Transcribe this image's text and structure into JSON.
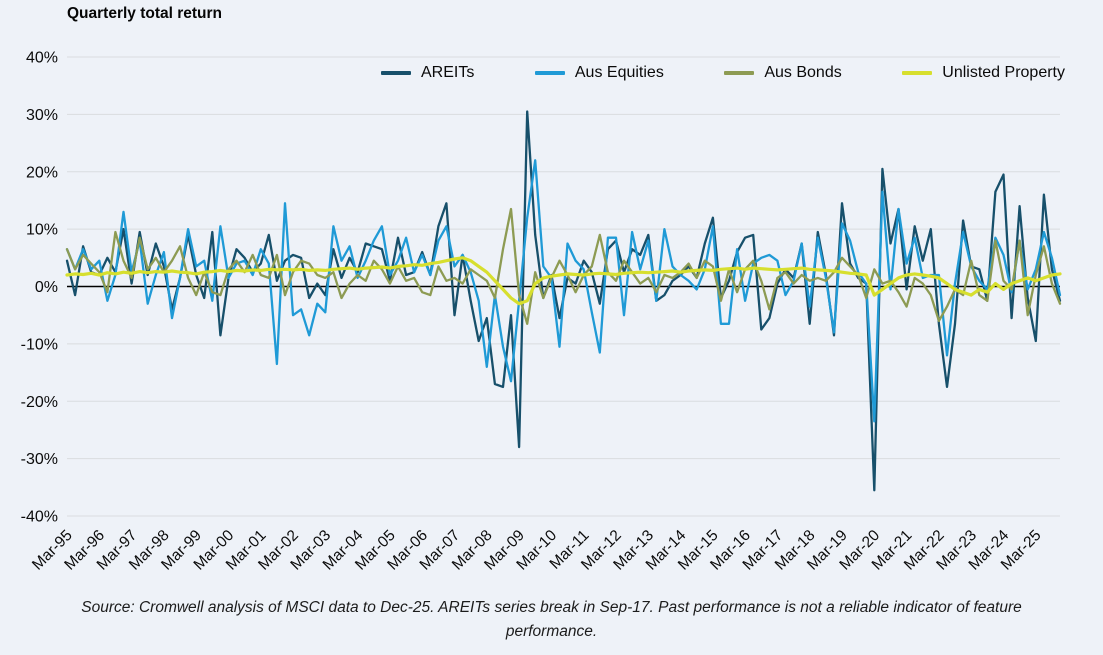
{
  "title": "Quarterly total return",
  "source_note": "Source: Cromwell analysis of MSCI data to Dec-25. AREITs series break in Sep-17. Past performance is not a reliable indicator of feature performance.",
  "colors": {
    "background": "#eef2f8",
    "gridline": "#d9dcdf",
    "zero_line": "#000000",
    "axis_text": "#0b0b0b"
  },
  "chart_data": {
    "type": "line",
    "title": "Quarterly total return",
    "xlabel": "",
    "ylabel": "",
    "ylim": [
      -40,
      40
    ],
    "y_tick_labels": [
      "40%",
      "30%",
      "20%",
      "10%",
      "0%",
      "-10%",
      "-20%",
      "-30%",
      "-40%"
    ],
    "x_start": "Mar-95",
    "x_end": "Dec-25",
    "points_per_tick": 4,
    "x_tick_labels": [
      "Mar-95",
      "Mar-96",
      "Mar-97",
      "Mar-98",
      "Mar-99",
      "Mar-00",
      "Mar-01",
      "Mar-02",
      "Mar-03",
      "Mar-04",
      "Mar-05",
      "Mar-06",
      "Mar-07",
      "Mar-08",
      "Mar-09",
      "Mar-10",
      "Mar-11",
      "Mar-12",
      "Mar-13",
      "Mar-14",
      "Mar-15",
      "Mar-16",
      "Mar-17",
      "Mar-18",
      "Mar-19",
      "Mar-20",
      "Mar-21",
      "Mar-22",
      "Mar-23",
      "Mar-24",
      "Mar-25"
    ],
    "grid": true,
    "legend_position": "top",
    "unit": "percent",
    "series": [
      {
        "name": "AREITs",
        "color": "#17506b",
        "values": [
          4.5,
          -1.5,
          7.0,
          2.5,
          2.0,
          5.0,
          2.5,
          10.0,
          0.5,
          9.5,
          2.0,
          7.5,
          3.5,
          -4.0,
          1.5,
          9.0,
          2.0,
          -2.0,
          9.5,
          -8.5,
          1.5,
          6.5,
          5.0,
          2.5,
          4.0,
          9.0,
          1.0,
          4.5,
          5.5,
          5.0,
          -2.0,
          0.5,
          -1.5,
          6.5,
          1.5,
          5.0,
          2.5,
          7.5,
          7.0,
          6.5,
          1.0,
          8.5,
          2.0,
          2.5,
          6.0,
          2.0,
          10.5,
          14.5,
          -5.0,
          5.5,
          -2.5,
          -9.5,
          -5.5,
          -17.0,
          -17.5,
          -5.0,
          -28.0,
          30.5,
          9.0,
          -2.0,
          2.0,
          -5.5,
          1.5,
          0.5,
          4.5,
          2.5,
          -3.0,
          6.5,
          8.0,
          2.5,
          6.5,
          5.5,
          9.0,
          -2.5,
          -1.5,
          1.0,
          2.0,
          3.5,
          1.5,
          7.5,
          12.0,
          -2.0,
          1.0,
          6.0,
          8.5,
          9.0,
          -7.5,
          -5.5,
          0.5,
          3.0,
          1.5,
          7.5,
          -6.5,
          9.5,
          2.0,
          -8.5,
          14.5,
          4.0,
          1.5,
          0.5,
          -35.5,
          20.5,
          7.5,
          13.5,
          -0.5,
          10.5,
          4.5,
          10.0,
          -6.5,
          -17.5,
          -6.5,
          11.5,
          3.5,
          3.0,
          -2.5,
          16.5,
          19.5,
          -5.5,
          14.0,
          -2.0,
          -9.5,
          16.0,
          3.0,
          -2.5
        ]
      },
      {
        "name": "Aus Equities",
        "color": "#1f9ad6",
        "values": [
          6.5,
          3.0,
          6.5,
          3.0,
          4.5,
          -2.5,
          2.0,
          13.0,
          2.5,
          8.0,
          -3.0,
          2.0,
          6.0,
          -5.5,
          1.5,
          10.0,
          3.5,
          4.5,
          -2.5,
          10.5,
          1.5,
          4.0,
          4.5,
          2.0,
          6.5,
          4.0,
          -13.5,
          14.5,
          -5.0,
          -4.0,
          -8.5,
          -3.0,
          -4.5,
          10.5,
          4.5,
          7.0,
          1.5,
          4.5,
          8.0,
          10.5,
          2.0,
          4.5,
          8.5,
          2.5,
          5.5,
          2.0,
          8.0,
          10.5,
          3.5,
          5.5,
          2.5,
          -2.5,
          -14.0,
          -1.5,
          -10.5,
          -16.5,
          -2.5,
          12.0,
          22.0,
          3.5,
          1.5,
          -10.5,
          7.5,
          4.5,
          3.0,
          -4.5,
          -11.5,
          8.5,
          8.5,
          -5.0,
          9.5,
          3.0,
          8.0,
          -2.5,
          10.0,
          3.5,
          2.0,
          1.0,
          -0.5,
          3.0,
          10.5,
          -6.5,
          -6.5,
          6.5,
          -2.5,
          4.0,
          5.0,
          5.5,
          4.5,
          -1.5,
          1.0,
          7.5,
          -3.5,
          8.5,
          1.5,
          -8.0,
          11.0,
          8.0,
          2.5,
          0.5,
          -23.5,
          16.5,
          -0.5,
          13.5,
          4.0,
          8.5,
          1.5,
          2.0,
          2.0,
          -12.0,
          0.5,
          9.5,
          3.5,
          1.0,
          -0.5,
          8.5,
          5.5,
          -1.0,
          8.0,
          -0.5,
          3.0,
          9.5,
          5.0,
          -1.5
        ]
      },
      {
        "name": "Aus Bonds",
        "color": "#8d9b53",
        "values": [
          6.5,
          3.0,
          5.5,
          4.0,
          2.5,
          -1.0,
          9.5,
          4.5,
          1.5,
          8.5,
          3.0,
          5.0,
          2.5,
          4.5,
          7.0,
          1.5,
          -1.5,
          2.5,
          -1.0,
          -1.5,
          3.0,
          4.5,
          2.5,
          5.5,
          2.0,
          1.5,
          5.5,
          -1.5,
          2.5,
          4.5,
          4.0,
          2.0,
          1.5,
          2.5,
          -2.0,
          0.5,
          2.0,
          1.0,
          4.5,
          3.0,
          0.5,
          3.5,
          1.0,
          1.5,
          -1.0,
          -1.5,
          3.5,
          1.0,
          1.5,
          0.5,
          3.0,
          2.0,
          1.0,
          -2.0,
          6.5,
          13.5,
          -1.5,
          -6.5,
          2.5,
          -2.0,
          1.5,
          4.5,
          2.0,
          -1.0,
          2.0,
          3.5,
          9.0,
          2.5,
          1.0,
          4.5,
          2.5,
          0.5,
          1.5,
          -1.0,
          2.0,
          1.5,
          2.5,
          4.0,
          1.5,
          4.5,
          3.5,
          -2.5,
          3.0,
          -1.0,
          3.0,
          4.5,
          1.0,
          -4.0,
          1.5,
          2.5,
          0.5,
          2.0,
          1.0,
          1.5,
          1.0,
          2.5,
          5.0,
          3.5,
          2.0,
          -2.0,
          3.0,
          0.5,
          1.0,
          -1.0,
          -3.5,
          1.5,
          0.5,
          -1.5,
          -6.0,
          -3.5,
          -0.5,
          -1.5,
          4.5,
          -1.5,
          -2.5,
          8.0,
          1.0,
          -0.5,
          8.0,
          -5.0,
          2.0,
          7.0,
          0.5,
          -3.0
        ]
      },
      {
        "name": "Unlisted Property",
        "color": "#d7df2e",
        "values": [
          2.0,
          2.2,
          2.1,
          2.3,
          2.0,
          2.4,
          2.2,
          2.5,
          2.3,
          2.6,
          2.4,
          2.6,
          2.5,
          2.7,
          2.5,
          2.4,
          2.2,
          2.5,
          2.6,
          2.8,
          2.6,
          2.8,
          2.7,
          2.9,
          2.8,
          3.0,
          2.9,
          3.0,
          2.9,
          3.0,
          2.8,
          2.9,
          2.8,
          3.0,
          3.1,
          3.2,
          3.0,
          3.2,
          3.3,
          3.4,
          3.2,
          3.5,
          3.6,
          3.8,
          3.7,
          4.0,
          4.2,
          4.5,
          4.8,
          5.0,
          4.5,
          3.5,
          2.5,
          1.0,
          -0.5,
          -2.0,
          -3.0,
          -2.5,
          0.5,
          1.5,
          1.8,
          2.0,
          2.2,
          2.1,
          2.0,
          2.2,
          2.3,
          2.2,
          2.1,
          2.3,
          2.4,
          2.5,
          2.4,
          2.5,
          2.6,
          2.7,
          2.5,
          2.7,
          2.8,
          2.9,
          2.8,
          3.0,
          3.1,
          3.2,
          3.0,
          3.2,
          3.1,
          3.0,
          2.9,
          3.0,
          3.1,
          3.2,
          3.0,
          2.9,
          2.8,
          2.7,
          2.5,
          2.3,
          2.2,
          2.0,
          -1.5,
          -0.5,
          0.5,
          1.5,
          2.0,
          2.2,
          2.0,
          1.8,
          1.5,
          0.5,
          -0.5,
          -1.0,
          -1.5,
          -0.5,
          -1.0,
          0.5,
          -0.5,
          0.5,
          1.0,
          1.5,
          1.0,
          1.5,
          2.0,
          2.2
        ]
      }
    ]
  }
}
